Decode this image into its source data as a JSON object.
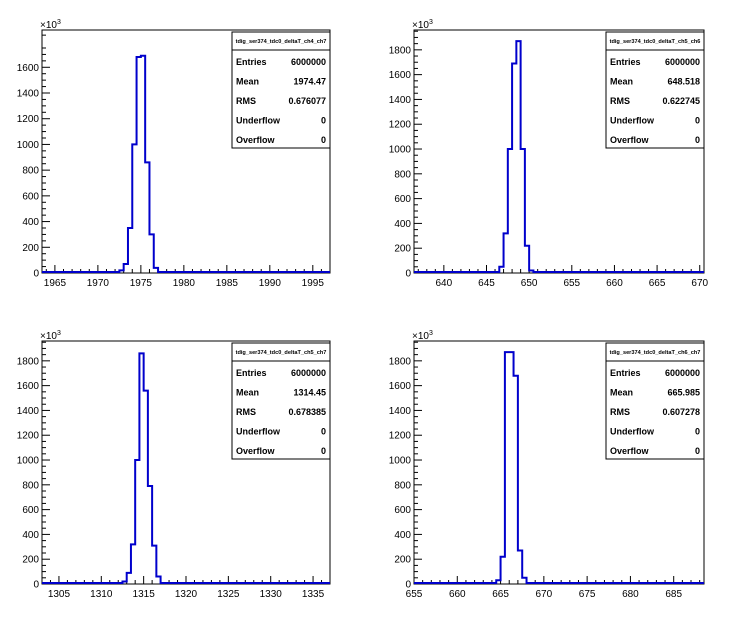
{
  "chart_data": [
    {
      "type": "bar",
      "title": "tdig_ser374_tdc0_deltaT_ch4_ch7",
      "exponent_label": "×10",
      "exponent_power": "3",
      "xlim": [
        1963.5,
        1997
      ],
      "ylim": [
        0,
        1890
      ],
      "x_ticks": [
        1965,
        1970,
        1975,
        1980,
        1985,
        1990,
        1995
      ],
      "y_ticks": [
        0,
        200,
        400,
        600,
        800,
        1000,
        1200,
        1400,
        1600
      ],
      "bin_width": 0.5,
      "bins": [
        {
          "x": 1972.5,
          "y": 20
        },
        {
          "x": 1973.0,
          "y": 70
        },
        {
          "x": 1973.5,
          "y": 350
        },
        {
          "x": 1974.0,
          "y": 1000
        },
        {
          "x": 1974.5,
          "y": 1680
        },
        {
          "x": 1975.0,
          "y": 1690
        },
        {
          "x": 1975.5,
          "y": 860
        },
        {
          "x": 1976.0,
          "y": 300
        },
        {
          "x": 1976.5,
          "y": 40
        },
        {
          "x": 1977.0,
          "y": 5
        }
      ],
      "stats": [
        {
          "label": "Entries",
          "value": "6000000"
        },
        {
          "label": "Mean",
          "value": "1974.47"
        },
        {
          "label": "RMS",
          "value": "0.676077"
        },
        {
          "label": "Underflow",
          "value": "0"
        },
        {
          "label": "Overflow",
          "value": "0"
        }
      ],
      "line_color": "#0000cc"
    },
    {
      "type": "bar",
      "title": "tdig_ser374_tdc0_deltaT_ch5_ch6",
      "exponent_label": "×10",
      "exponent_power": "3",
      "xlim": [
        636.5,
        670.5
      ],
      "ylim": [
        0,
        1960
      ],
      "x_ticks": [
        640,
        645,
        650,
        655,
        660,
        665,
        670
      ],
      "y_ticks": [
        0,
        200,
        400,
        600,
        800,
        1000,
        1200,
        1400,
        1600,
        1800
      ],
      "bin_width": 0.5,
      "bins": [
        {
          "x": 646.5,
          "y": 50
        },
        {
          "x": 647.0,
          "y": 320
        },
        {
          "x": 647.5,
          "y": 1000
        },
        {
          "x": 648.0,
          "y": 1690
        },
        {
          "x": 648.5,
          "y": 1870
        },
        {
          "x": 649.0,
          "y": 1000
        },
        {
          "x": 649.5,
          "y": 220
        },
        {
          "x": 650.0,
          "y": 20
        }
      ],
      "stats": [
        {
          "label": "Entries",
          "value": "6000000"
        },
        {
          "label": "Mean",
          "value": "648.518"
        },
        {
          "label": "RMS",
          "value": "0.622745"
        },
        {
          "label": "Underflow",
          "value": "0"
        },
        {
          "label": "Overflow",
          "value": "0"
        }
      ],
      "line_color": "#0000cc"
    },
    {
      "type": "bar",
      "title": "tdig_ser374_tdc0_deltaT_ch5_ch7",
      "exponent_label": "×10",
      "exponent_power": "3",
      "xlim": [
        1303,
        1337
      ],
      "ylim": [
        0,
        1960
      ],
      "x_ticks": [
        1305,
        1310,
        1315,
        1320,
        1325,
        1330,
        1335
      ],
      "y_ticks": [
        0,
        200,
        400,
        600,
        800,
        1000,
        1200,
        1400,
        1600,
        1800
      ],
      "bin_width": 0.5,
      "bins": [
        {
          "x": 1312.5,
          "y": 20
        },
        {
          "x": 1313.0,
          "y": 90
        },
        {
          "x": 1313.5,
          "y": 320
        },
        {
          "x": 1314.0,
          "y": 1000
        },
        {
          "x": 1314.5,
          "y": 1860
        },
        {
          "x": 1315.0,
          "y": 1560
        },
        {
          "x": 1315.5,
          "y": 790
        },
        {
          "x": 1316.0,
          "y": 310
        },
        {
          "x": 1316.5,
          "y": 60
        }
      ],
      "stats": [
        {
          "label": "Entries",
          "value": "6000000"
        },
        {
          "label": "Mean",
          "value": "1314.45"
        },
        {
          "label": "RMS",
          "value": "0.678385"
        },
        {
          "label": "Underflow",
          "value": "0"
        },
        {
          "label": "Overflow",
          "value": "0"
        }
      ],
      "line_color": "#0000cc"
    },
    {
      "type": "bar",
      "title": "tdig_ser374_tdc0_deltaT_ch6_ch7",
      "exponent_label": "×10",
      "exponent_power": "3",
      "xlim": [
        655,
        688.5
      ],
      "ylim": [
        0,
        1960
      ],
      "x_ticks": [
        655,
        660,
        665,
        670,
        675,
        680,
        685
      ],
      "y_ticks": [
        0,
        200,
        400,
        600,
        800,
        1000,
        1200,
        1400,
        1600,
        1800
      ],
      "bin_width": 0.5,
      "bins": [
        {
          "x": 664.5,
          "y": 30
        },
        {
          "x": 665.0,
          "y": 220
        },
        {
          "x": 665.5,
          "y": 1870
        },
        {
          "x": 666.0,
          "y": 1870
        },
        {
          "x": 666.5,
          "y": 1680
        },
        {
          "x": 667.0,
          "y": 270
        },
        {
          "x": 667.5,
          "y": 50
        }
      ],
      "stats": [
        {
          "label": "Entries",
          "value": "6000000"
        },
        {
          "label": "Mean",
          "value": "665.985"
        },
        {
          "label": "RMS",
          "value": "0.607278"
        },
        {
          "label": "Underflow",
          "value": "0"
        },
        {
          "label": "Overflow",
          "value": "0"
        }
      ],
      "line_color": "#0000cc"
    }
  ]
}
